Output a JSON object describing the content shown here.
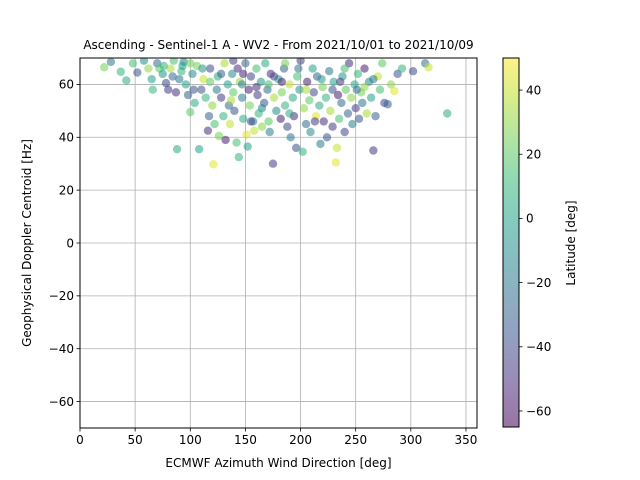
{
  "chart_data": {
    "type": "scatter",
    "title": "Ascending - Sentinel-1 A - WV2 - From 2021/10/01 to 2021/10/09",
    "xlabel": "ECMWF Azimuth Wind Direction [deg]",
    "ylabel": "Geophysical Doppler Centroid [Hz]",
    "xlim": [
      0,
      360
    ],
    "ylim": [
      -70,
      70
    ],
    "xticks": [
      0,
      50,
      100,
      150,
      200,
      250,
      300,
      350
    ],
    "yticks": [
      -60,
      -40,
      -20,
      0,
      20,
      40,
      60
    ],
    "grid": true,
    "point_alpha": 0.55,
    "colorbar": {
      "label": "Latitude [deg]",
      "range": [
        -65,
        50
      ],
      "ticks": [
        -60,
        -40,
        -20,
        0,
        20,
        40
      ],
      "colormap": [
        "#440154",
        "#482878",
        "#3e4989",
        "#31688e",
        "#26828e",
        "#1f9e89",
        "#35b779",
        "#6ece58",
        "#b5de2b",
        "#fde725"
      ]
    },
    "points": [
      {
        "x": 22,
        "y": 66.5,
        "lat": 25
      },
      {
        "x": 28,
        "y": 68.5,
        "lat": -20
      },
      {
        "x": 37,
        "y": 64.8,
        "lat": 10
      },
      {
        "x": 42,
        "y": 61.5,
        "lat": 5
      },
      {
        "x": 48,
        "y": 68,
        "lat": 15
      },
      {
        "x": 52,
        "y": 64.5,
        "lat": -35
      },
      {
        "x": 58,
        "y": 69,
        "lat": -10
      },
      {
        "x": 62,
        "y": 66,
        "lat": 30
      },
      {
        "x": 65,
        "y": 62,
        "lat": 0
      },
      {
        "x": 66,
        "y": 58,
        "lat": 10
      },
      {
        "x": 70,
        "y": 68,
        "lat": -25
      },
      {
        "x": 72,
        "y": 66,
        "lat": 20
      },
      {
        "x": 75,
        "y": 64,
        "lat": -5
      },
      {
        "x": 78,
        "y": 60.5,
        "lat": -40
      },
      {
        "x": 80,
        "y": 58,
        "lat": -45
      },
      {
        "x": 82,
        "y": 66,
        "lat": 35
      },
      {
        "x": 85,
        "y": 69,
        "lat": 15
      },
      {
        "x": 87,
        "y": 57,
        "lat": -50
      },
      {
        "x": 88,
        "y": 35.5,
        "lat": 5
      },
      {
        "x": 90,
        "y": 62,
        "lat": -20
      },
      {
        "x": 92,
        "y": 65,
        "lat": 10
      },
      {
        "x": 94,
        "y": 68.5,
        "lat": -15
      },
      {
        "x": 96,
        "y": 60,
        "lat": 0
      },
      {
        "x": 98,
        "y": 56,
        "lat": -30
      },
      {
        "x": 100,
        "y": 49.5,
        "lat": 20
      },
      {
        "x": 102,
        "y": 64,
        "lat": -10
      },
      {
        "x": 104,
        "y": 53,
        "lat": 5
      },
      {
        "x": 106,
        "y": 67,
        "lat": 25
      },
      {
        "x": 108,
        "y": 35.5,
        "lat": 0
      },
      {
        "x": 110,
        "y": 58,
        "lat": -35
      },
      {
        "x": 112,
        "y": 62,
        "lat": 40
      },
      {
        "x": 114,
        "y": 55,
        "lat": 10
      },
      {
        "x": 116,
        "y": 42.5,
        "lat": -50
      },
      {
        "x": 117,
        "y": 48,
        "lat": -30
      },
      {
        "x": 118,
        "y": 66,
        "lat": -40
      },
      {
        "x": 120,
        "y": 52,
        "lat": 30
      },
      {
        "x": 121,
        "y": 29.8,
        "lat": 45
      },
      {
        "x": 122,
        "y": 45,
        "lat": 15
      },
      {
        "x": 124,
        "y": 58,
        "lat": -20
      },
      {
        "x": 125,
        "y": 63,
        "lat": 5
      },
      {
        "x": 126,
        "y": 40.5,
        "lat": 25
      },
      {
        "x": 128,
        "y": 55,
        "lat": -45
      },
      {
        "x": 130,
        "y": 48,
        "lat": 10
      },
      {
        "x": 131,
        "y": 68,
        "lat": 35
      },
      {
        "x": 132,
        "y": 39,
        "lat": -55
      },
      {
        "x": 134,
        "y": 60,
        "lat": 0
      },
      {
        "x": 135,
        "y": 52,
        "lat": -25
      },
      {
        "x": 136,
        "y": 45,
        "lat": 40
      },
      {
        "x": 138,
        "y": 64,
        "lat": -10
      },
      {
        "x": 139,
        "y": 57,
        "lat": 20
      },
      {
        "x": 140,
        "y": 50,
        "lat": -35
      },
      {
        "x": 142,
        "y": 38,
        "lat": 15
      },
      {
        "x": 143,
        "y": 66,
        "lat": -50
      },
      {
        "x": 144,
        "y": 32.5,
        "lat": 10
      },
      {
        "x": 145,
        "y": 61,
        "lat": 30
      },
      {
        "x": 147,
        "y": 55,
        "lat": -15
      },
      {
        "x": 148,
        "y": 47,
        "lat": 5
      },
      {
        "x": 150,
        "y": 68,
        "lat": -30
      },
      {
        "x": 151,
        "y": 41,
        "lat": 45
      },
      {
        "x": 152,
        "y": 36.5,
        "lat": 0
      },
      {
        "x": 153,
        "y": 58,
        "lat": -55
      },
      {
        "x": 154,
        "y": 52,
        "lat": 25
      },
      {
        "x": 155,
        "y": 63,
        "lat": -40
      },
      {
        "x": 157,
        "y": 46,
        "lat": -20
      },
      {
        "x": 158,
        "y": 42.5,
        "lat": 40
      },
      {
        "x": 160,
        "y": 66,
        "lat": 15
      },
      {
        "x": 161,
        "y": 56,
        "lat": -45
      },
      {
        "x": 162,
        "y": 49,
        "lat": 10
      },
      {
        "x": 164,
        "y": 61,
        "lat": -5
      },
      {
        "x": 165,
        "y": 44,
        "lat": 30
      },
      {
        "x": 167,
        "y": 53,
        "lat": -35
      },
      {
        "x": 168,
        "y": 68,
        "lat": 5
      },
      {
        "x": 170,
        "y": 58,
        "lat": -25
      },
      {
        "x": 171,
        "y": 46,
        "lat": 20
      },
      {
        "x": 172,
        "y": 42,
        "lat": -15
      },
      {
        "x": 173,
        "y": 64,
        "lat": -50
      },
      {
        "x": 175,
        "y": 30,
        "lat": -45
      },
      {
        "x": 176,
        "y": 55,
        "lat": 35
      },
      {
        "x": 178,
        "y": 50,
        "lat": -10
      },
      {
        "x": 180,
        "y": 62,
        "lat": 0
      },
      {
        "x": 182,
        "y": 47,
        "lat": -55
      },
      {
        "x": 183,
        "y": 57,
        "lat": 25
      },
      {
        "x": 185,
        "y": 66,
        "lat": -30
      },
      {
        "x": 186,
        "y": 52,
        "lat": 10
      },
      {
        "x": 188,
        "y": 44,
        "lat": -40
      },
      {
        "x": 190,
        "y": 60,
        "lat": 40
      },
      {
        "x": 191,
        "y": 40,
        "lat": -20
      },
      {
        "x": 193,
        "y": 55,
        "lat": 5
      },
      {
        "x": 194,
        "y": 48,
        "lat": -50
      },
      {
        "x": 196,
        "y": 36,
        "lat": -35
      },
      {
        "x": 197,
        "y": 63,
        "lat": 15
      },
      {
        "x": 199,
        "y": 58,
        "lat": -5
      },
      {
        "x": 200,
        "y": 69,
        "lat": -45
      },
      {
        "x": 202,
        "y": 34.5,
        "lat": 10
      },
      {
        "x": 203,
        "y": 51,
        "lat": 30
      },
      {
        "x": 205,
        "y": 45,
        "lat": -25
      },
      {
        "x": 206,
        "y": 61,
        "lat": -55
      },
      {
        "x": 208,
        "y": 54,
        "lat": 20
      },
      {
        "x": 209,
        "y": 42,
        "lat": -10
      },
      {
        "x": 211,
        "y": 66,
        "lat": 0
      },
      {
        "x": 212,
        "y": 57,
        "lat": -40
      },
      {
        "x": 214,
        "y": 48,
        "lat": 45
      },
      {
        "x": 215,
        "y": 63,
        "lat": -30
      },
      {
        "x": 217,
        "y": 52,
        "lat": 5
      },
      {
        "x": 218,
        "y": 37.5,
        "lat": -15
      },
      {
        "x": 220,
        "y": 59,
        "lat": 25
      },
      {
        "x": 221,
        "y": 46,
        "lat": -50
      },
      {
        "x": 223,
        "y": 55,
        "lat": 10
      },
      {
        "x": 224,
        "y": 40,
        "lat": -35
      },
      {
        "x": 226,
        "y": 65,
        "lat": -20
      },
      {
        "x": 227,
        "y": 50,
        "lat": 35
      },
      {
        "x": 229,
        "y": 44,
        "lat": -45
      },
      {
        "x": 230,
        "y": 61,
        "lat": 0
      },
      {
        "x": 232,
        "y": 30.5,
        "lat": 45
      },
      {
        "x": 233,
        "y": 36,
        "lat": 40
      },
      {
        "x": 234,
        "y": 56,
        "lat": -55
      },
      {
        "x": 235,
        "y": 47,
        "lat": 15
      },
      {
        "x": 237,
        "y": 53,
        "lat": -25
      },
      {
        "x": 238,
        "y": 63,
        "lat": -5
      },
      {
        "x": 240,
        "y": 42,
        "lat": -40
      },
      {
        "x": 241,
        "y": 58,
        "lat": 20
      },
      {
        "x": 243,
        "y": 49,
        "lat": -30
      },
      {
        "x": 244,
        "y": 68,
        "lat": -50
      },
      {
        "x": 246,
        "y": 55,
        "lat": 30
      },
      {
        "x": 247,
        "y": 45,
        "lat": -15
      },
      {
        "x": 249,
        "y": 60,
        "lat": 5
      },
      {
        "x": 250,
        "y": 51,
        "lat": -45
      },
      {
        "x": 252,
        "y": 64,
        "lat": 10
      },
      {
        "x": 253,
        "y": 47,
        "lat": -35
      },
      {
        "x": 255,
        "y": 57,
        "lat": 25
      },
      {
        "x": 256,
        "y": 53,
        "lat": -20
      },
      {
        "x": 258,
        "y": 66,
        "lat": -55
      },
      {
        "x": 260,
        "y": 49,
        "lat": 35
      },
      {
        "x": 262,
        "y": 61,
        "lat": -10
      },
      {
        "x": 264,
        "y": 55,
        "lat": 0
      },
      {
        "x": 266,
        "y": 35,
        "lat": -45
      },
      {
        "x": 268,
        "y": 48,
        "lat": -30
      },
      {
        "x": 270,
        "y": 63,
        "lat": 40
      },
      {
        "x": 272,
        "y": 58,
        "lat": 15
      },
      {
        "x": 274,
        "y": 68,
        "lat": 20
      },
      {
        "x": 276,
        "y": 53,
        "lat": -40
      },
      {
        "x": 279,
        "y": 52.5,
        "lat": -30
      },
      {
        "x": 282,
        "y": 60,
        "lat": 30
      },
      {
        "x": 285,
        "y": 57.5,
        "lat": 45
      },
      {
        "x": 288,
        "y": 64,
        "lat": -35
      },
      {
        "x": 292,
        "y": 66,
        "lat": 10
      },
      {
        "x": 302,
        "y": 65,
        "lat": -40
      },
      {
        "x": 313,
        "y": 68,
        "lat": -25
      },
      {
        "x": 316,
        "y": 66.5,
        "lat": 40
      },
      {
        "x": 333,
        "y": 49,
        "lat": 5
      },
      {
        "x": 186,
        "y": 68,
        "lat": 25
      },
      {
        "x": 139,
        "y": 69,
        "lat": -45
      },
      {
        "x": 160,
        "y": 59,
        "lat": -50
      },
      {
        "x": 148,
        "y": 64,
        "lat": -55
      },
      {
        "x": 176,
        "y": 63,
        "lat": -40
      },
      {
        "x": 198,
        "y": 66,
        "lat": -20
      },
      {
        "x": 219,
        "y": 62,
        "lat": -5
      },
      {
        "x": 240,
        "y": 66,
        "lat": 15
      },
      {
        "x": 128,
        "y": 64,
        "lat": -30
      },
      {
        "x": 118,
        "y": 61,
        "lat": 20
      },
      {
        "x": 103,
        "y": 58,
        "lat": -35
      },
      {
        "x": 93,
        "y": 67,
        "lat": 0
      },
      {
        "x": 76,
        "y": 67,
        "lat": 10
      },
      {
        "x": 205,
        "y": 58,
        "lat": 35
      },
      {
        "x": 229,
        "y": 58,
        "lat": -35
      },
      {
        "x": 251,
        "y": 58,
        "lat": -25
      },
      {
        "x": 165,
        "y": 51,
        "lat": -10
      },
      {
        "x": 155,
        "y": 46,
        "lat": -40
      },
      {
        "x": 190,
        "y": 49,
        "lat": 5
      },
      {
        "x": 213,
        "y": 46,
        "lat": -45
      },
      {
        "x": 137,
        "y": 54,
        "lat": 35
      },
      {
        "x": 147,
        "y": 60,
        "lat": -15
      },
      {
        "x": 171,
        "y": 60,
        "lat": 15
      },
      {
        "x": 183,
        "y": 61,
        "lat": -55
      },
      {
        "x": 236,
        "y": 61,
        "lat": -45
      },
      {
        "x": 258,
        "y": 59,
        "lat": 30
      },
      {
        "x": 266,
        "y": 62,
        "lat": -20
      },
      {
        "x": 111,
        "y": 66,
        "lat": -5
      },
      {
        "x": 100,
        "y": 68,
        "lat": 25
      },
      {
        "x": 84,
        "y": 63,
        "lat": -25
      }
    ]
  }
}
